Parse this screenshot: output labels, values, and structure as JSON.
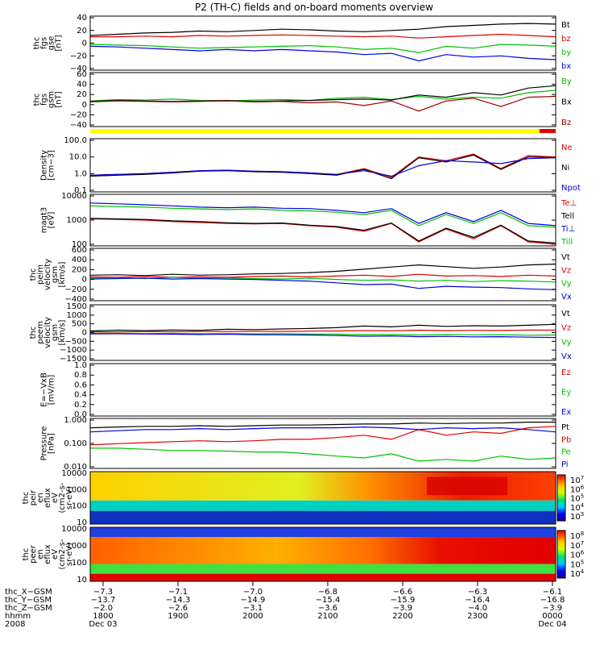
{
  "title": "P2 (TH-C) fields and on-board moments overview",
  "chart_data": [
    {
      "id": "fgs_gse",
      "type": "line",
      "ylabel": [
        "thc",
        "fgs",
        "gse",
        "[nT]"
      ],
      "yticks": [
        "40",
        "20",
        "0",
        "−20",
        "−40"
      ],
      "ylim": [
        -40,
        40
      ],
      "series": [
        {
          "name": "Bt",
          "color": "#000000",
          "values": [
            12,
            14,
            16,
            17,
            19,
            18,
            20,
            22,
            21,
            19,
            18,
            20,
            22,
            26,
            28,
            30,
            31,
            30
          ]
        },
        {
          "name": "bz",
          "color": "#e00000",
          "values": [
            10,
            10,
            11,
            10,
            12,
            11,
            12,
            13,
            12,
            11,
            10,
            11,
            8,
            10,
            12,
            14,
            12,
            10
          ]
        },
        {
          "name": "by",
          "color": "#00c000",
          "values": [
            -2,
            -3,
            -4,
            -6,
            -8,
            -7,
            -6,
            -5,
            -4,
            -6,
            -10,
            -8,
            -15,
            -5,
            -8,
            -2,
            -3,
            -5
          ]
        },
        {
          "name": "bx",
          "color": "#0000e0",
          "values": [
            -5,
            -6,
            -8,
            -10,
            -12,
            -10,
            -12,
            -10,
            -12,
            -14,
            -18,
            -16,
            -28,
            -18,
            -22,
            -20,
            -24,
            -26
          ]
        }
      ]
    },
    {
      "id": "fgs_gsm",
      "type": "line",
      "ylabel": [
        "thc",
        "fgs",
        "gsm",
        "[nT]"
      ],
      "yticks": [
        "60",
        "40",
        "20",
        "0",
        "−20",
        "−40"
      ],
      "ylim": [
        -50,
        60
      ],
      "series": [
        {
          "name": "By",
          "color": "#00c000",
          "values": [
            2,
            5,
            4,
            6,
            3,
            2,
            4,
            5,
            3,
            8,
            10,
            5,
            12,
            6,
            10,
            8,
            20,
            25
          ]
        },
        {
          "name": "Bx",
          "color": "#000000",
          "values": [
            1,
            3,
            2,
            1,
            2,
            3,
            1,
            2,
            3,
            5,
            6,
            4,
            15,
            10,
            20,
            15,
            30,
            35
          ]
        },
        {
          "name": "Bz",
          "color": "#a00000",
          "values": [
            0,
            2,
            1,
            0,
            1,
            2,
            0,
            1,
            -2,
            0,
            -8,
            2,
            -20,
            2,
            8,
            -10,
            10,
            12
          ]
        }
      ]
    },
    {
      "id": "density",
      "type": "line",
      "yscale": "log",
      "ylabel": [
        "Density",
        "[cm−3]"
      ],
      "yticks": [
        "100.0",
        "10.0",
        "1.0",
        "0.1"
      ],
      "ylim": [
        0.1,
        100
      ],
      "series": [
        {
          "name": "Ne",
          "color": "#e00000",
          "values": [
            0.8,
            0.9,
            1.0,
            1.2,
            1.5,
            1.6,
            1.4,
            1.3,
            1.1,
            0.9,
            2.0,
            0.6,
            10,
            6,
            15,
            2,
            12,
            10
          ]
        },
        {
          "name": "Ni",
          "color": "#000000",
          "values": [
            0.7,
            0.8,
            0.9,
            1.1,
            1.4,
            1.5,
            1.3,
            1.2,
            1.0,
            0.8,
            1.8,
            0.5,
            9,
            5,
            13,
            1.8,
            10,
            9
          ]
        },
        {
          "name": "Npot",
          "color": "#0000e0",
          "values": [
            0.8,
            0.9,
            1.0,
            1.2,
            1.5,
            1.6,
            1.4,
            1.3,
            1.1,
            0.9,
            1.5,
            0.7,
            3,
            6,
            5,
            4,
            8,
            9
          ]
        }
      ]
    },
    {
      "id": "temperature",
      "type": "line",
      "yscale": "log",
      "ylabel": [
        "magt3",
        "[eV]"
      ],
      "yticks": [
        "10000",
        "1000",
        "100"
      ],
      "ylim": [
        30,
        12000
      ],
      "series": [
        {
          "name": "Te⊥",
          "color": "#e00000",
          "values": [
            700,
            650,
            600,
            500,
            450,
            400,
            380,
            400,
            300,
            250,
            150,
            400,
            40,
            200,
            60,
            300,
            40,
            30
          ]
        },
        {
          "name": "Tell",
          "color": "#000000",
          "values": [
            750,
            700,
            650,
            550,
            500,
            430,
            400,
            420,
            320,
            270,
            170,
            420,
            45,
            220,
            70,
            320,
            45,
            35
          ]
        },
        {
          "name": "Ti⊥",
          "color": "#0000e0",
          "values": [
            5000,
            4500,
            4000,
            3500,
            3000,
            2800,
            3000,
            2600,
            2500,
            2000,
            1500,
            2500,
            400,
            1500,
            500,
            2000,
            400,
            300
          ]
        },
        {
          "name": "Till",
          "color": "#00c000",
          "values": [
            3500,
            3200,
            3000,
            2600,
            2400,
            2200,
            2400,
            2000,
            1900,
            1600,
            1200,
            2000,
            300,
            1200,
            400,
            1500,
            300,
            250
          ]
        }
      ]
    },
    {
      "id": "peim_velocity",
      "type": "line",
      "ylabel": [
        "thc",
        "peim",
        "velocity",
        "gsm",
        "[km/s]"
      ],
      "yticks": [
        "600",
        "400",
        "200",
        "0",
        "−200",
        "−400"
      ],
      "ylim": [
        -500,
        650
      ],
      "series": [
        {
          "name": "Vt",
          "color": "#000000",
          "values": [
            60,
            70,
            50,
            80,
            60,
            70,
            90,
            100,
            120,
            150,
            200,
            250,
            300,
            260,
            220,
            250,
            300,
            320
          ]
        },
        {
          "name": "Vz",
          "color": "#e00000",
          "values": [
            20,
            10,
            30,
            10,
            20,
            10,
            30,
            40,
            20,
            40,
            60,
            30,
            80,
            40,
            50,
            30,
            60,
            40
          ]
        },
        {
          "name": "Vy",
          "color": "#00c000",
          "values": [
            -10,
            0,
            -20,
            10,
            -10,
            0,
            -20,
            -30,
            -10,
            -40,
            -60,
            -50,
            -80,
            -60,
            -90,
            -70,
            -80,
            -100
          ]
        },
        {
          "name": "Vx",
          "color": "#0000e0",
          "values": [
            -30,
            -20,
            -10,
            -30,
            -20,
            -30,
            -40,
            -60,
            -80,
            -120,
            -160,
            -150,
            -250,
            -200,
            -220,
            -230,
            -260,
            -280
          ]
        }
      ]
    },
    {
      "id": "peem_velocity",
      "type": "line",
      "ylabel": [
        "thc",
        "peem",
        "velocity",
        "gsm",
        "[km/s]"
      ],
      "yticks": [
        "1500",
        "1000",
        "500",
        "0",
        "−500",
        "−1000",
        "−1500"
      ],
      "ylim": [
        -1600,
        1600
      ],
      "series": [
        {
          "name": "Vt",
          "color": "#000000",
          "values": [
            100,
            150,
            120,
            160,
            140,
            200,
            180,
            220,
            250,
            300,
            400,
            350,
            450,
            380,
            420,
            400,
            450,
            500
          ]
        },
        {
          "name": "Vz",
          "color": "#e00000",
          "values": [
            50,
            40,
            60,
            50,
            70,
            60,
            80,
            70,
            90,
            100,
            120,
            110,
            150,
            120,
            140,
            130,
            160,
            150
          ]
        },
        {
          "name": "Vy",
          "color": "#00c000",
          "values": [
            -50,
            -40,
            -60,
            -50,
            -70,
            -60,
            -80,
            -70,
            -90,
            -100,
            -120,
            -110,
            -150,
            -120,
            -140,
            -130,
            -160,
            -150
          ]
        },
        {
          "name": "Vx",
          "color": "#0000e0",
          "values": [
            -80,
            -70,
            -90,
            -100,
            -120,
            -100,
            -130,
            -140,
            -150,
            -180,
            -220,
            -200,
            -250,
            -230,
            -260,
            -250,
            -280,
            -300
          ]
        }
      ]
    },
    {
      "id": "efield",
      "type": "line",
      "ylabel": [
        "E=−VxB",
        "[mV/m]"
      ],
      "yticks": [
        "1.0",
        "0.8",
        "0.6",
        "0.4",
        "0.2",
        "0.0"
      ],
      "ylim": [
        0,
        1
      ],
      "series": [
        {
          "name": "Ez",
          "color": "#e00000",
          "values": []
        },
        {
          "name": "Ey",
          "color": "#00c000",
          "values": []
        },
        {
          "name": "Ex",
          "color": "#0000e0",
          "values": []
        }
      ]
    },
    {
      "id": "pressure",
      "type": "line",
      "yscale": "log",
      "ylabel": [
        "Pressure",
        "[nPa]"
      ],
      "yticks": [
        "1.000",
        "0.100",
        "0.010"
      ],
      "ylim": [
        0.004,
        1.3
      ],
      "series": [
        {
          "name": "Pt",
          "color": "#000000",
          "values": [
            0.5,
            0.55,
            0.6,
            0.6,
            0.65,
            0.6,
            0.65,
            0.7,
            0.7,
            0.75,
            0.8,
            0.8,
            0.9,
            0.85,
            0.9,
            0.9,
            1.0,
            1.0
          ]
        },
        {
          "name": "Pb",
          "color": "#e00000",
          "values": [
            0.06,
            0.07,
            0.08,
            0.09,
            0.1,
            0.09,
            0.1,
            0.12,
            0.12,
            0.15,
            0.2,
            0.12,
            0.4,
            0.2,
            0.3,
            0.25,
            0.5,
            0.6
          ]
        },
        {
          "name": "Pe",
          "color": "#00c000",
          "values": [
            0.04,
            0.04,
            0.035,
            0.03,
            0.03,
            0.028,
            0.025,
            0.025,
            0.02,
            0.015,
            0.012,
            0.02,
            0.008,
            0.01,
            0.008,
            0.015,
            0.01,
            0.012
          ]
        },
        {
          "name": "Pi",
          "color": "#0000e0",
          "values": [
            0.3,
            0.35,
            0.4,
            0.4,
            0.45,
            0.4,
            0.45,
            0.5,
            0.5,
            0.5,
            0.55,
            0.5,
            0.4,
            0.5,
            0.45,
            0.5,
            0.4,
            0.3
          ]
        }
      ]
    },
    {
      "id": "peir_spectrogram",
      "type": "heatmap",
      "ylabel": [
        "thc",
        "peir",
        "en",
        "eflux",
        "eV",
        "(cm2-s-",
        "sr-eV)"
      ],
      "yscale": "log",
      "yticks": [
        "10000",
        "1000",
        "100",
        "10"
      ],
      "ylim": [
        10,
        20000
      ],
      "colorbar_ticks": [
        "107",
        "106",
        "105",
        "104",
        "103"
      ]
    },
    {
      "id": "peer_spectrogram",
      "type": "heatmap",
      "ylabel": [
        "thc",
        "peer",
        "en",
        "eflux",
        "eV",
        "(cm2-s-",
        "sr-eV)"
      ],
      "yscale": "log",
      "yticks": [
        "10000",
        "1000",
        "100",
        "10"
      ],
      "ylim": [
        10,
        20000
      ],
      "colorbar_ticks": [
        "108",
        "107",
        "106",
        "105",
        "104"
      ]
    }
  ],
  "footer": {
    "rows": [
      {
        "label": "thc_X−GSM",
        "values": [
          "−7.3",
          "−7.1",
          "−7.0",
          "−6.8",
          "−6.6",
          "−6.3",
          "−6.1"
        ]
      },
      {
        "label": "thc_Y−GSM",
        "values": [
          "−13.7",
          "−14.3",
          "−14.9",
          "−15.4",
          "−15.9",
          "−16.4",
          "−16.8"
        ]
      },
      {
        "label": "thc_Z−GSM",
        "values": [
          "−2.0",
          "−2.6",
          "−3.1",
          "−3.6",
          "−3.9",
          "−4.0",
          "−3.9"
        ]
      },
      {
        "label": "hhmm",
        "values": [
          "1800",
          "1900",
          "2000",
          "2100",
          "2200",
          "2300",
          "0000"
        ]
      },
      {
        "label": "2008",
        "values": [
          "Dec 03",
          "",
          "",
          "",
          "",
          "",
          "Dec 04"
        ]
      }
    ]
  },
  "colors": {
    "bar_yellow": "#ffff00",
    "bar_red": "#e00000"
  }
}
